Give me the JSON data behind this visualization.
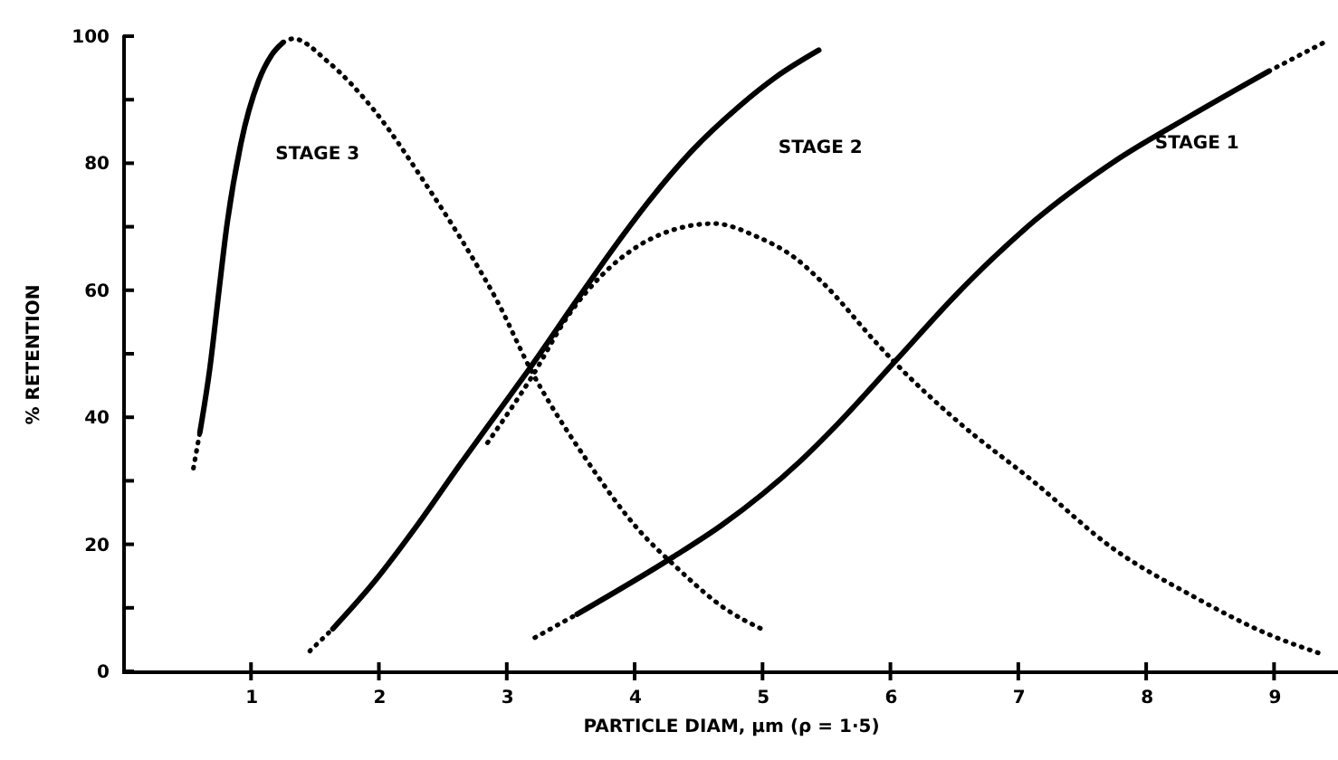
{
  "chart_data": {
    "type": "line",
    "xlabel": "PARTICLE DIAM, μm (ρ = 1·5)",
    "ylabel": "% RETENTION",
    "annotations": [
      "STAGE 3",
      "STAGE 2",
      "STAGE 1"
    ],
    "xlim": [
      0,
      9.5
    ],
    "ylim": [
      0,
      100
    ],
    "xticks": [
      1,
      2,
      3,
      4,
      5,
      6,
      7,
      8,
      9
    ],
    "yticks": [
      0,
      {
        "value": 10,
        "label": null
      },
      20,
      {
        "value": 30,
        "label": null
      },
      40,
      {
        "value": 50,
        "label": null
      },
      60,
      {
        "value": 70,
        "label": null
      },
      80,
      {
        "value": 90,
        "label": null
      },
      100
    ],
    "series": [
      {
        "color": "#000000",
        "line_style": "dotted",
        "x": [
          0.55,
          0.6
        ],
        "values": [
          32,
          37.6
        ]
      },
      {
        "color": "#000000",
        "line_style": "solid",
        "x": [
          0.6,
          0.68,
          0.75,
          0.81,
          0.92,
          1.06,
          1.16,
          1.25
        ],
        "values": [
          37.6,
          48,
          60,
          70,
          83,
          93,
          97,
          99
        ]
      },
      {
        "color": "#000000",
        "line_style": "dotted",
        "x": [
          1.25,
          1.33,
          1.6,
          1.96,
          2.37,
          2.72,
          2.92,
          3.19,
          3.62,
          4.03,
          4.31,
          4.72,
          4.99
        ],
        "values": [
          99,
          99.6,
          96,
          88.4,
          76.6,
          65.5,
          58.5,
          47.4,
          33.4,
          22.3,
          16.7,
          9.7,
          6.7
        ]
      },
      {
        "color": "#000000",
        "line_style": "dotted",
        "x": [
          1.46,
          1.64
        ],
        "values": [
          3.2,
          6.7
        ]
      },
      {
        "color": "#000000",
        "line_style": "solid",
        "x": [
          1.64,
          1.96,
          2.3,
          2.65,
          2.92,
          3.19,
          3.55,
          3.83,
          4.11,
          4.45,
          4.82,
          5.1,
          5.44
        ],
        "values": [
          6.7,
          14,
          23,
          33,
          40.5,
          48,
          58.5,
          66.5,
          74,
          82,
          89,
          93.5,
          97.8
        ]
      },
      {
        "color": "#000000",
        "line_style": "dotted",
        "x": [
          2.85,
          3.2,
          3.48,
          3.75,
          4.03,
          4.3,
          4.62,
          4.95,
          5.26,
          5.47,
          5.9,
          6.05,
          6.5,
          7.13,
          7.73,
          8.35,
          8.96,
          9.39
        ],
        "values": [
          36,
          46.5,
          56,
          62.5,
          67,
          69.5,
          70.5,
          68.5,
          65,
          61.2,
          51.5,
          48.3,
          39.8,
          29.7,
          19.5,
          12,
          5.8,
          2.6
        ]
      },
      {
        "color": "#000000",
        "line_style": "dotted",
        "x": [
          3.22,
          3.55
        ],
        "values": [
          5.3,
          9
        ]
      },
      {
        "color": "#000000",
        "line_style": "solid",
        "x": [
          3.55,
          4.3,
          4.68,
          5.29,
          5.59,
          6.05,
          6.5,
          6.8,
          7.13,
          7.73,
          8.35,
          8.96
        ],
        "values": [
          9,
          18,
          23,
          33,
          39,
          49.1,
          59,
          65,
          71,
          80,
          87.5,
          94.5
        ]
      },
      {
        "color": "#000000",
        "line_style": "dotted",
        "x": [
          8.96,
          9.39
        ],
        "values": [
          94.5,
          99
        ]
      }
    ]
  }
}
